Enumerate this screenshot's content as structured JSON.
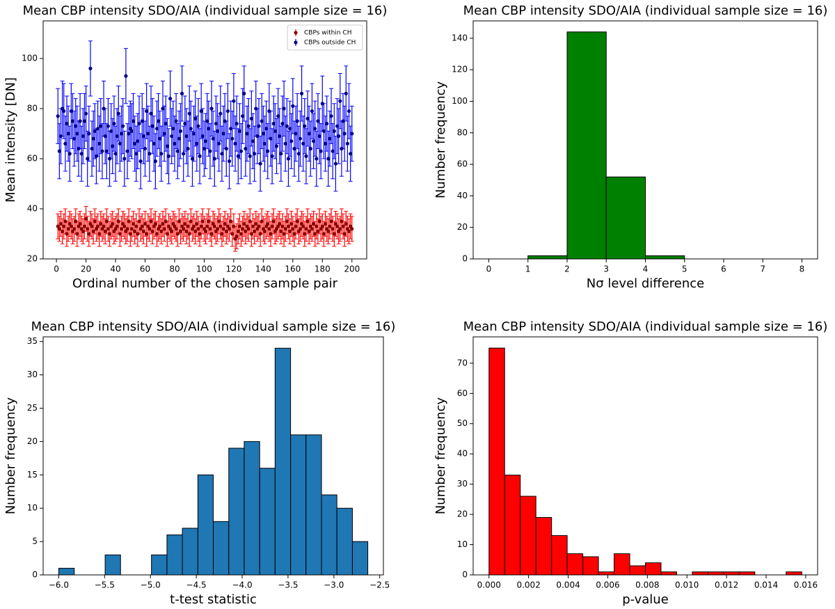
{
  "chart_data": [
    {
      "type": "errorbar",
      "title": "Mean CBP intensity SDO/AIA (individual sample size = 16)",
      "xlabel": "Ordinal number of the chosen sample pair",
      "ylabel": "Mean intensity [DN]",
      "xlim": [
        -9,
        210
      ],
      "ylim": [
        20,
        115
      ],
      "xticks": [
        0,
        20,
        40,
        60,
        80,
        100,
        120,
        140,
        160,
        180,
        200
      ],
      "yticks": [
        20,
        40,
        60,
        80,
        100
      ],
      "legend": "upper right",
      "x": [
        1,
        2,
        3,
        4,
        5,
        6,
        7,
        8,
        9,
        10,
        11,
        12,
        13,
        14,
        15,
        16,
        17,
        18,
        19,
        20,
        21,
        22,
        23,
        24,
        25,
        26,
        27,
        28,
        29,
        30,
        31,
        32,
        33,
        34,
        35,
        36,
        37,
        38,
        39,
        40,
        41,
        42,
        43,
        44,
        45,
        46,
        47,
        48,
        49,
        50,
        51,
        52,
        53,
        54,
        55,
        56,
        57,
        58,
        59,
        60,
        61,
        62,
        63,
        64,
        65,
        66,
        67,
        68,
        69,
        70,
        71,
        72,
        73,
        74,
        75,
        76,
        77,
        78,
        79,
        80,
        81,
        82,
        83,
        84,
        85,
        86,
        87,
        88,
        89,
        90,
        91,
        92,
        93,
        94,
        95,
        96,
        97,
        98,
        99,
        100,
        101,
        102,
        103,
        104,
        105,
        106,
        107,
        108,
        109,
        110,
        111,
        112,
        113,
        114,
        115,
        116,
        117,
        118,
        119,
        120,
        121,
        122,
        123,
        124,
        125,
        126,
        127,
        128,
        129,
        130,
        131,
        132,
        133,
        134,
        135,
        136,
        137,
        138,
        139,
        140,
        141,
        142,
        143,
        144,
        145,
        146,
        147,
        148,
        149,
        150,
        151,
        152,
        153,
        154,
        155,
        156,
        157,
        158,
        159,
        160,
        161,
        162,
        163,
        164,
        165,
        166,
        167,
        168,
        169,
        170,
        171,
        172,
        173,
        174,
        175,
        176,
        177,
        178,
        179,
        180,
        181,
        182,
        183,
        184,
        185,
        186,
        187,
        188,
        189,
        190,
        191,
        192,
        193,
        194,
        195,
        196,
        197,
        198,
        199,
        200
      ],
      "series": [
        {
          "name": "CBPs within CH",
          "color": "#ff0000",
          "marker_color": "#8b0000",
          "error": 5,
          "values": [
            33,
            32,
            34,
            31,
            33,
            35,
            30,
            32,
            34,
            33,
            31,
            32,
            35,
            30,
            33,
            34,
            32,
            31,
            33,
            36,
            32,
            30,
            34,
            33,
            31,
            35,
            32,
            33,
            30,
            34,
            32,
            33,
            31,
            35,
            32,
            30,
            33,
            34,
            31,
            32,
            33,
            35,
            30,
            32,
            34,
            33,
            31,
            32,
            35,
            30,
            32,
            34,
            31,
            33,
            30,
            35,
            32,
            33,
            31,
            34,
            30,
            33,
            32,
            35,
            31,
            33,
            34,
            30,
            32,
            33,
            31,
            34,
            32,
            35,
            30,
            33,
            32,
            31,
            34,
            33,
            32,
            30,
            35,
            31,
            33,
            32,
            34,
            31,
            33,
            30,
            35,
            32,
            33,
            31,
            34,
            32,
            30,
            33,
            35,
            32,
            31,
            33,
            35,
            32,
            30,
            34,
            33,
            31,
            32,
            35,
            33,
            30,
            32,
            34,
            31,
            33,
            32,
            35,
            30,
            33,
            28,
            29,
            31,
            33,
            30,
            32,
            34,
            31,
            33,
            32,
            35,
            30,
            33,
            31,
            34,
            32,
            33,
            30,
            35,
            32,
            31,
            33,
            34,
            32,
            30,
            33,
            35,
            31,
            32,
            33,
            34,
            31,
            33,
            30,
            32,
            35,
            33,
            31,
            34,
            32,
            30,
            33,
            35,
            31,
            32,
            34,
            33,
            30,
            32,
            35,
            31,
            33,
            32,
            34,
            30,
            33,
            31,
            35,
            32,
            33,
            30,
            34,
            32,
            31,
            33,
            35,
            32,
            30,
            34,
            33,
            31,
            32,
            35,
            33,
            30,
            34,
            32,
            31,
            33,
            32
          ]
        },
        {
          "name": "CBPs outside CH",
          "color": "#0000ff",
          "marker_color": "#00008b",
          "error": 11,
          "values": [
            77,
            63,
            69,
            80,
            79,
            66,
            74,
            70,
            62,
            79,
            75,
            68,
            73,
            70,
            64,
            75,
            62,
            69,
            75,
            78,
            60,
            70,
            96,
            64,
            68,
            71,
            61,
            72,
            66,
            73,
            63,
            80,
            69,
            63,
            73,
            60,
            71,
            65,
            74,
            62,
            69,
            78,
            66,
            70,
            73,
            60,
            93,
            63,
            70,
            72,
            71,
            75,
            66,
            62,
            67,
            74,
            59,
            75,
            69,
            64,
            79,
            70,
            62,
            78,
            73,
            66,
            59,
            72,
            75,
            68,
            62,
            80,
            70,
            74,
            65,
            61,
            84,
            69,
            72,
            66,
            75,
            63,
            68,
            71,
            86,
            62,
            74,
            69,
            64,
            78,
            72,
            60,
            70,
            76,
            66,
            73,
            61,
            79,
            69,
            64,
            67,
            75,
            72,
            63,
            80,
            68,
            60,
            74,
            71,
            66,
            78,
            62,
            70,
            75,
            64,
            79,
            59,
            72,
            68,
            83,
            66,
            74,
            61,
            71,
            63,
            77,
            86,
            64,
            70,
            73,
            61,
            76,
            67,
            62,
            80,
            69,
            73,
            58,
            75,
            70,
            66,
            72,
            63,
            79,
            68,
            61,
            74,
            71,
            65,
            77,
            69,
            62,
            74,
            80,
            66,
            73,
            60,
            72,
            67,
            81,
            64,
            70,
            75,
            62,
            68,
            86,
            66,
            73,
            61,
            76,
            70,
            64,
            79,
            67,
            72,
            60,
            75,
            69,
            63,
            82,
            71,
            66,
            74,
            60,
            68,
            77,
            63,
            71,
            58,
            73,
            69,
            83,
            64,
            75,
            70,
            86,
            66,
            79,
            62,
            70
          ]
        }
      ]
    },
    {
      "type": "histogram",
      "title": "Mean CBP intensity SDO/AIA (individual sample size = 16)",
      "xlabel": "Nσ level difference",
      "ylabel": "Number frequency",
      "color": "#008000",
      "bins": [
        0,
        1,
        2,
        3,
        4,
        5,
        6,
        7,
        8
      ],
      "counts": [
        0,
        2,
        144,
        52,
        2,
        0,
        0,
        0
      ],
      "xlim": [
        -0.4,
        8.4
      ],
      "ylim": [
        0,
        151
      ],
      "xticks": [
        0,
        1,
        2,
        3,
        4,
        5,
        6,
        7,
        8
      ],
      "yticks": [
        0,
        20,
        40,
        60,
        80,
        100,
        120,
        140
      ]
    },
    {
      "type": "histogram",
      "title": "Mean CBP intensity SDO/AIA (individual sample size = 16)",
      "xlabel": "t-test statistic",
      "ylabel": "Number frequency",
      "color": "#1f77b4",
      "bins": [
        -6.0,
        -5.831,
        -5.663,
        -5.494,
        -5.326,
        -5.157,
        -4.989,
        -4.82,
        -4.652,
        -4.483,
        -4.315,
        -4.146,
        -3.978,
        -3.809,
        -3.641,
        -3.472,
        -3.304,
        -3.135,
        -2.967,
        -2.798,
        -2.63
      ],
      "counts": [
        1,
        0,
        0,
        3,
        0,
        0,
        3,
        6,
        7,
        15,
        8,
        19,
        20,
        16,
        34,
        21,
        21,
        12,
        10,
        5
      ],
      "xlim": [
        -6.17,
        -2.46
      ],
      "ylim": [
        0,
        35.7
      ],
      "xticks": [
        {
          "value": -6.0,
          "label": "−6.0"
        },
        {
          "value": -5.5,
          "label": "−5.5"
        },
        {
          "value": -5.0,
          "label": "−5.0"
        },
        {
          "value": -4.5,
          "label": "−4.5"
        },
        {
          "value": -4.0,
          "label": "−4.0"
        },
        {
          "value": -3.5,
          "label": "−3.5"
        },
        {
          "value": -3.0,
          "label": "−3.0"
        },
        {
          "value": -2.5,
          "label": "−2.5"
        }
      ],
      "yticks": [
        0,
        5,
        10,
        15,
        20,
        25,
        30,
        35
      ]
    },
    {
      "type": "histogram",
      "title": "Mean CBP intensity SDO/AIA (individual sample size = 16)",
      "xlabel": "p-value",
      "ylabel": "Number frequency",
      "color": "#ff0000",
      "bins": [
        0,
        0.00079,
        0.00158,
        0.00237,
        0.00316,
        0.00395,
        0.00474,
        0.00553,
        0.00632,
        0.00711,
        0.0079,
        0.00869,
        0.00948,
        0.01027,
        0.01106,
        0.01185,
        0.01264,
        0.01343,
        0.01422,
        0.01501,
        0.0158
      ],
      "counts": [
        75,
        33,
        26,
        19,
        13,
        7,
        6,
        1,
        7,
        3,
        4,
        1,
        0,
        1,
        1,
        1,
        1,
        0,
        0,
        1
      ],
      "xlim": [
        -0.0008,
        0.0166
      ],
      "ylim": [
        0,
        78.7
      ],
      "xticks": [
        {
          "value": 0,
          "label": "0.000"
        },
        {
          "value": 0.002,
          "label": "0.002"
        },
        {
          "value": 0.004,
          "label": "0.004"
        },
        {
          "value": 0.006,
          "label": "0.006"
        },
        {
          "value": 0.008,
          "label": "0.008"
        },
        {
          "value": 0.01,
          "label": "0.010"
        },
        {
          "value": 0.012,
          "label": "0.012"
        },
        {
          "value": 0.014,
          "label": "0.014"
        },
        {
          "value": 0.016,
          "label": "0.016"
        }
      ],
      "yticks": [
        0,
        10,
        20,
        30,
        40,
        50,
        60,
        70
      ]
    }
  ]
}
